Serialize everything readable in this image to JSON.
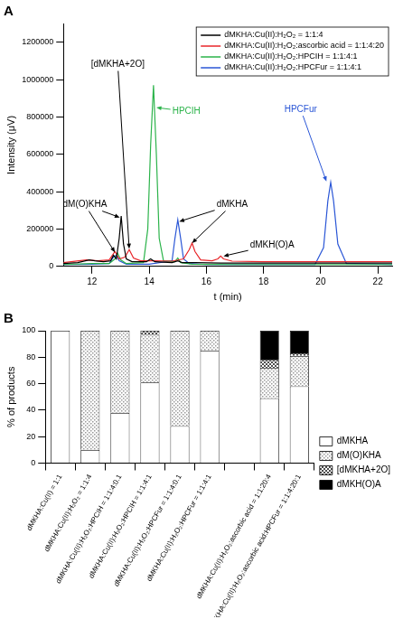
{
  "chart_data": [
    {
      "type": "line",
      "title": "A",
      "x_label": "t (min)",
      "y_label": "Intensity (μV)",
      "xlim": [
        11,
        22.5
      ],
      "xticks": [
        12,
        14,
        16,
        18,
        20,
        22
      ],
      "ylim": [
        0,
        1300000
      ],
      "yticks": [
        0,
        200000,
        400000,
        600000,
        800000,
        1000000,
        1200000
      ],
      "grid": false,
      "legend": "upper right",
      "annotations": [
        {
          "text": "dM(O)KHA"
        },
        {
          "text": "[dMKHA+2O]"
        },
        {
          "text": "HPCIH",
          "color": "#2bb34a"
        },
        {
          "text": "dMKHA"
        },
        {
          "text": "dMKH(O)A"
        },
        {
          "text": "HPCFur",
          "color": "#2a56d6"
        }
      ],
      "series": [
        {
          "name": "dMKHA:Cu(II):H₂O₂ = 1:1:4",
          "color": "#000000",
          "x": [
            11,
            11.5,
            11.9,
            12.1,
            12.4,
            12.65,
            12.75,
            12.85,
            12.95,
            13.02,
            13.1,
            13.2,
            13.4,
            13.9,
            14.05,
            14.2,
            14.8,
            15.0,
            15.15,
            15.6,
            16.5,
            18,
            20,
            22.5
          ],
          "values": [
            15000,
            20000,
            35000,
            30000,
            25000,
            30000,
            60000,
            40000,
            150000,
            270000,
            120000,
            40000,
            25000,
            25000,
            40000,
            25000,
            20000,
            30000,
            20000,
            20000,
            18000,
            18000,
            18000,
            18000
          ]
        },
        {
          "name": "dMKHA:Cu(II):H₂O₂:ascorbic acid = 1:1:4:20",
          "color": "#e8262a",
          "x": [
            11,
            11.8,
            12.2,
            12.6,
            12.8,
            12.95,
            13.15,
            13.3,
            13.45,
            13.7,
            14.2,
            14.8,
            15.2,
            15.4,
            15.5,
            15.6,
            15.8,
            16.2,
            16.4,
            16.5,
            16.6,
            16.9,
            18,
            20,
            22.5
          ],
          "values": [
            20000,
            35000,
            30000,
            35000,
            80000,
            40000,
            50000,
            90000,
            45000,
            30000,
            30000,
            28000,
            40000,
            90000,
            125000,
            80000,
            35000,
            30000,
            40000,
            55000,
            40000,
            28000,
            25000,
            25000,
            25000
          ]
        },
        {
          "name": "dMKHA:Cu(II):H₂O₂:HPCIH = 1:1:4:1",
          "color": "#2bb34a",
          "x": [
            11,
            12,
            12.6,
            12.8,
            12.9,
            13.0,
            13.2,
            13.8,
            13.95,
            14.05,
            14.15,
            14.25,
            14.35,
            14.5,
            14.9,
            15.0,
            15.1,
            15.5,
            17,
            20,
            22.5
          ],
          "values": [
            10000,
            15000,
            15000,
            40000,
            70000,
            35000,
            15000,
            20000,
            200000,
            650000,
            970000,
            600000,
            150000,
            30000,
            25000,
            45000,
            20000,
            12000,
            10000,
            10000,
            10000
          ]
        },
        {
          "name": "dMKHA:Cu(II):H₂O₂:HPCFur = 1:1:4:1",
          "color": "#2a56d6",
          "x": [
            11,
            12,
            12.6,
            12.75,
            12.85,
            12.95,
            13.2,
            14,
            14.8,
            14.9,
            15.0,
            15.1,
            15.2,
            15.4,
            16,
            18,
            19.8,
            20.1,
            20.25,
            20.35,
            20.45,
            20.6,
            20.9,
            22.5
          ],
          "values": [
            10000,
            12000,
            15000,
            50000,
            60000,
            30000,
            12000,
            12000,
            30000,
            150000,
            250000,
            150000,
            40000,
            15000,
            10000,
            10000,
            10000,
            100000,
            350000,
            450000,
            350000,
            120000,
            15000,
            10000
          ]
        }
      ]
    },
    {
      "type": "bar",
      "title": "B",
      "y_label": "% of products",
      "stacked": true,
      "grid": false,
      "legend": "right",
      "ylim": [
        0,
        100
      ],
      "yticks": [
        0,
        20,
        40,
        60,
        80,
        100
      ],
      "categories": [
        "dMKHA:Cu(II) = 1:1",
        "dMKHA:Cu(II):H₂O₂ = 1:1:4",
        "dMKHA:Cu(II):H₂O₂:HPCIH = 1:1:4:0.1",
        "dMKHA:Cu(II):H₂O₂:HPCIH = 1:1:4:1",
        "dMKHA:Cu(II):H₂O₂:HPCFur = 1:1:4:0.1",
        "dMKHA:Cu(II):H₂O₂:HPCFur = 1:1:4:1",
        null,
        "dMKHA:Cu(II):H₂O₂:ascorbic acid = 1:1:20:4",
        "dMKHA:Cu(II):H₂O₂:ascorbic acid:HPCFur = 1:1:4:20:1"
      ],
      "series": [
        {
          "name": "dMKHA",
          "color": "#ffffff",
          "values": [
            100,
            10,
            38,
            61,
            28,
            85,
            null,
            49,
            58
          ]
        },
        {
          "name": "dM(O)KHA",
          "color": "#9a9a9a",
          "values": [
            0,
            90,
            62,
            36,
            72,
            15,
            null,
            23,
            23
          ]
        },
        {
          "name": "[dMKHA+2O]",
          "color": "#4d4d4d",
          "values": [
            0,
            0,
            0,
            3,
            0,
            0,
            null,
            6,
            2
          ]
        },
        {
          "name": "dMKH(O)A",
          "color": "#000000",
          "values": [
            0,
            0,
            0,
            0,
            0,
            0,
            null,
            22,
            17
          ]
        }
      ]
    }
  ]
}
